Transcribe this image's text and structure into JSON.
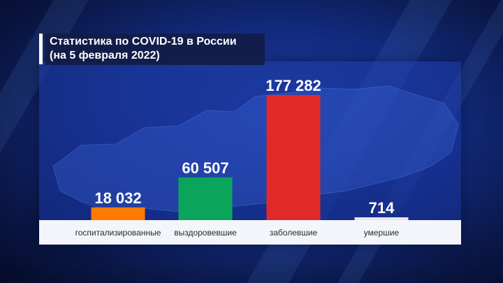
{
  "header": {
    "title_line1": "Статистика по COVID-19 в России",
    "title_line2": "(на 5 февраля 2022)"
  },
  "chart_data": {
    "type": "bar",
    "categories": [
      "госпитализированные",
      "выздоровевшие",
      "заболевшие",
      "умершие"
    ],
    "values": [
      18032,
      60507,
      177282,
      714
    ],
    "value_labels": [
      "18 032",
      "60 507",
      "177 282",
      "714"
    ],
    "colors": [
      "#ff7a00",
      "#0aa55a",
      "#e02a2a",
      "#e8e8e8"
    ],
    "ylim": [
      0,
      177282
    ],
    "grid": false,
    "legend": "none"
  }
}
